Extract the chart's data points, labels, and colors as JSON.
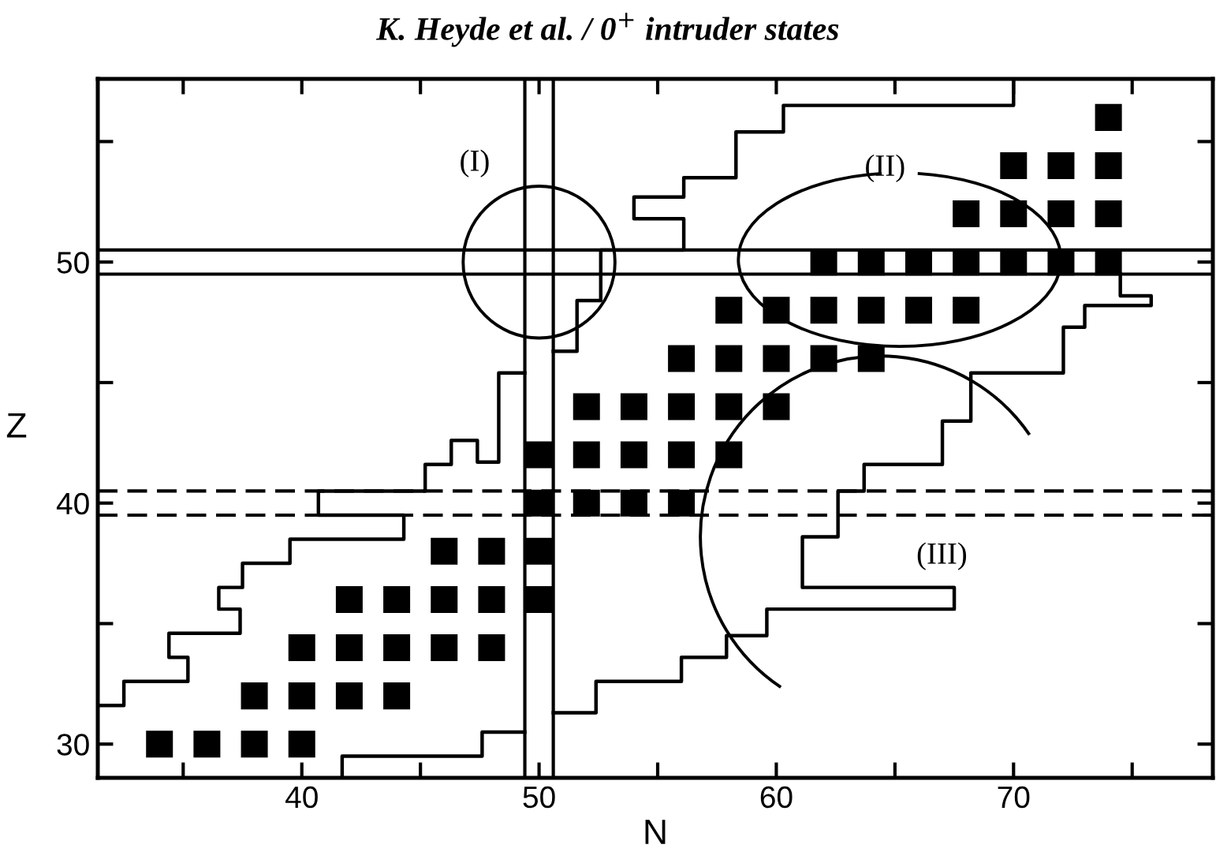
{
  "chart_data": {
    "type": "scatter",
    "title": "K. Heyde et al. / 0$^{+}$ intruder states",
    "xlabel": "N",
    "ylabel": "Z",
    "xlim": [
      31.4,
      78.4
    ],
    "ylim": [
      28.6,
      57.6
    ],
    "xticks": [
      {
        "value": 35,
        "label": null
      },
      40,
      {
        "value": 45,
        "label": null
      },
      50,
      {
        "value": 55,
        "label": null
      },
      60,
      {
        "value": 65,
        "label": null
      },
      70,
      {
        "value": 75,
        "label": null
      }
    ],
    "yticks": [
      30,
      {
        "value": 35,
        "label": null
      },
      40,
      {
        "value": 45,
        "label": null
      },
      50,
      {
        "value": 55,
        "label": null
      }
    ],
    "ref_lines": [
      {
        "axis": "x",
        "value": 49.4,
        "line_style": "solid",
        "color": "#000000"
      },
      {
        "axis": "x",
        "value": 50.6,
        "line_style": "solid",
        "color": "#000000"
      },
      {
        "axis": "y",
        "value": 49.5,
        "line_style": "solid",
        "color": "#000000"
      },
      {
        "axis": "y",
        "value": 50.5,
        "line_style": "solid",
        "color": "#000000"
      },
      {
        "axis": "y",
        "value": 39.5,
        "line_style": "dashed",
        "color": "#000000"
      },
      {
        "axis": "y",
        "value": 40.5,
        "line_style": "dashed",
        "color": "#000000"
      }
    ],
    "annotations": [
      "(I)",
      "(II)",
      "(III)"
    ],
    "series": [
      {
        "marker": "square",
        "color": "#000000",
        "x": [
          34,
          36,
          38,
          40,
          38,
          40,
          42,
          44,
          40,
          42,
          44,
          46,
          48,
          42,
          44,
          46,
          48,
          50,
          46,
          48,
          50,
          50,
          52,
          54,
          56,
          50,
          52,
          54,
          56,
          58,
          52,
          54,
          56,
          58,
          60,
          56,
          58,
          60,
          62,
          64,
          58,
          60,
          62,
          64,
          66,
          68,
          62,
          64,
          66,
          68,
          70,
          72,
          74,
          68,
          70,
          72,
          74,
          70,
          72,
          74,
          74
        ],
        "values": [
          30,
          30,
          30,
          30,
          32,
          32,
          32,
          32,
          34,
          34,
          34,
          34,
          34,
          36,
          36,
          36,
          36,
          36,
          38,
          38,
          38,
          40,
          40,
          40,
          40,
          42,
          42,
          42,
          42,
          42,
          44,
          44,
          44,
          44,
          44,
          46,
          46,
          46,
          46,
          46,
          48,
          48,
          48,
          48,
          48,
          48,
          50,
          50,
          50,
          50,
          50,
          50,
          50,
          52,
          52,
          52,
          52,
          54,
          54,
          54,
          56
        ]
      },
      {
        "type": "line",
        "marker": "none",
        "color": "#000000",
        "x": [
          31.4,
          32.5,
          32.5,
          35.2,
          35.2,
          34.4,
          34.4,
          37.4,
          37.4,
          36.5,
          36.5,
          37.5,
          37.5,
          39.5,
          39.5,
          44.3,
          44.3,
          40.7,
          40.7,
          45.2,
          45.2,
          46.3,
          46.3,
          47.4,
          47.4,
          48.3,
          48.3,
          49.4
        ],
        "values": [
          31.6,
          31.6,
          32.6,
          32.6,
          33.6,
          33.6,
          34.6,
          34.6,
          35.6,
          35.6,
          36.5,
          36.5,
          37.5,
          37.5,
          38.5,
          38.5,
          39.5,
          39.5,
          40.5,
          40.5,
          41.6,
          41.6,
          42.6,
          42.6,
          41.7,
          41.7,
          45.4,
          45.4
        ]
      },
      {
        "type": "line",
        "marker": "none",
        "color": "#000000",
        "x": [
          50.6,
          51.6,
          51.6,
          52.6,
          52.6,
          56.1,
          56.1,
          54,
          54,
          56.1,
          56.1,
          58.3,
          58.3,
          60.3,
          60.3,
          70,
          70
        ],
        "values": [
          46.3,
          46.3,
          48.4,
          48.4,
          50.5,
          50.5,
          51.8,
          51.8,
          52.7,
          52.7,
          53.5,
          53.5,
          55.4,
          55.4,
          56.5,
          56.5,
          57.6
        ]
      },
      {
        "type": "line",
        "marker": "none",
        "color": "#000000",
        "x": [
          41.7,
          41.7,
          47.6,
          47.6,
          49.4
        ],
        "values": [
          28.6,
          29.5,
          29.5,
          30.5,
          30.5
        ]
      },
      {
        "type": "line",
        "marker": "none",
        "color": "#000000",
        "x": [
          50.6,
          52.4,
          52.4,
          56,
          56,
          57.9,
          57.9,
          59.6,
          59.6,
          67.5,
          67.5,
          61.1,
          61.1,
          62.6,
          62.6,
          63.7,
          63.7,
          67,
          67,
          68.2,
          68.2,
          72.1,
          72.1,
          73,
          73,
          75.8,
          75.8,
          74.5,
          74.5
        ],
        "values": [
          31.3,
          31.3,
          32.6,
          32.6,
          33.6,
          33.6,
          34.5,
          34.5,
          35.6,
          35.6,
          36.5,
          36.5,
          38.6,
          38.6,
          40.5,
          40.5,
          41.6,
          41.6,
          43.4,
          43.4,
          45.4,
          45.4,
          47.3,
          47.3,
          48.2,
          48.2,
          48.6,
          48.6,
          49.5
        ]
      }
    ]
  }
}
